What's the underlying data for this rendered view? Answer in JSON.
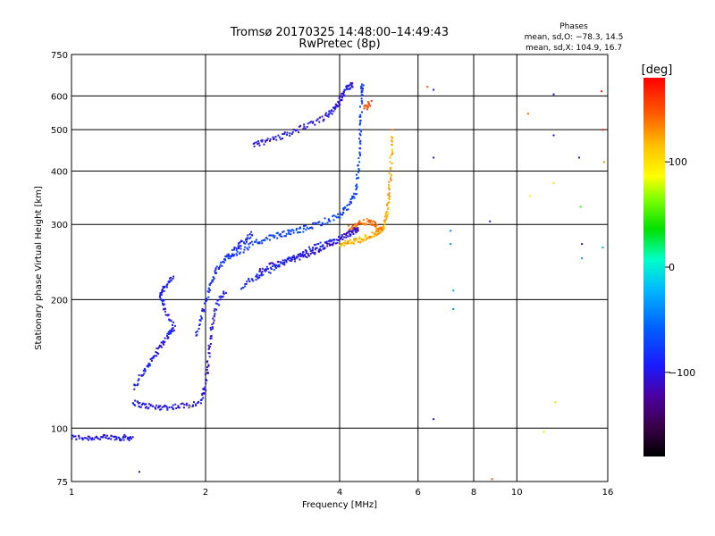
{
  "chart_data": {
    "type": "scatter",
    "title": "Tromsø 20170325 14:48:00–14:49:43",
    "subtitle": "RwPretec (8p)",
    "info": {
      "heading": "Phases",
      "line1": "mean, sd,O: −78.3, 14.5",
      "line2": "mean, sd,X: 104.9, 16.7"
    },
    "xlabel": "Frequency [MHz]",
    "ylabel": "Stationary phase Virtual Height [km]",
    "x_scale": "log",
    "y_scale": "log",
    "xlim": [
      1,
      16
    ],
    "ylim": [
      75,
      750
    ],
    "x_ticks": [
      1,
      2,
      4,
      6,
      8,
      10,
      16
    ],
    "x_tick_labels": [
      "1",
      "2",
      "4",
      "6",
      "8",
      "10",
      "16"
    ],
    "y_ticks": [
      75,
      100,
      200,
      300,
      400,
      500,
      600,
      750
    ],
    "y_tick_labels": [
      "75",
      "100",
      "200",
      "300",
      "400",
      "500",
      "600",
      "750"
    ],
    "grid": true,
    "colorbar": {
      "unit": "[deg]",
      "range": [
        -180,
        180
      ],
      "ticks": [
        100,
        0,
        -100
      ],
      "tick_labels": [
        "100",
        "0",
        "−100"
      ]
    },
    "traces": [
      {
        "name": "",
        "phase": -100,
        "points": [
          [
            1.0,
            95
          ],
          [
            1.08,
            95
          ],
          [
            1.16,
            95
          ],
          [
            1.24,
            95
          ],
          [
            1.31,
            95
          ],
          [
            1.37,
            95
          ]
        ]
      },
      {
        "name": "",
        "phase": -100,
        "points": [
          [
            1.37,
            115
          ],
          [
            1.45,
            113
          ],
          [
            1.55,
            112
          ],
          [
            1.65,
            112
          ],
          [
            1.8,
            113
          ],
          [
            1.95,
            115
          ],
          [
            2.0,
            125
          ],
          [
            2.03,
            145
          ],
          [
            2.06,
            170
          ],
          [
            2.12,
            195
          ],
          [
            2.22,
            210
          ]
        ]
      },
      {
        "name": "",
        "phase": -95,
        "points": [
          [
            1.38,
            125
          ],
          [
            1.45,
            135
          ],
          [
            1.52,
            145
          ],
          [
            1.58,
            155
          ],
          [
            1.65,
            165
          ],
          [
            1.7,
            172
          ],
          [
            1.62,
            190
          ],
          [
            1.58,
            205
          ],
          [
            1.62,
            215
          ],
          [
            1.7,
            225
          ]
        ]
      },
      {
        "name": "",
        "phase": -85,
        "points": [
          [
            1.9,
            165
          ],
          [
            1.98,
            190
          ],
          [
            2.05,
            215
          ],
          [
            2.12,
            235
          ],
          [
            2.22,
            250
          ],
          [
            2.35,
            265
          ],
          [
            2.45,
            275
          ],
          [
            2.55,
            285
          ]
        ]
      },
      {
        "name": "",
        "phase": -105,
        "points": [
          [
            2.6,
            230
          ],
          [
            2.8,
            240
          ],
          [
            3.0,
            245
          ],
          [
            3.2,
            250
          ],
          [
            3.4,
            255
          ],
          [
            3.6,
            262
          ],
          [
            3.8,
            270
          ],
          [
            4.0,
            278
          ],
          [
            4.2,
            285
          ],
          [
            4.3,
            290
          ],
          [
            4.4,
            292
          ]
        ]
      },
      {
        "name": "",
        "phase": -90,
        "points": [
          [
            2.4,
            215
          ],
          [
            2.6,
            225
          ],
          [
            2.8,
            235
          ],
          [
            3.0,
            245
          ],
          [
            3.3,
            258
          ],
          [
            3.6,
            268
          ],
          [
            3.9,
            276
          ]
        ]
      },
      {
        "name": "",
        "phase": -75,
        "points": [
          [
            2.2,
            250
          ],
          [
            2.4,
            260
          ],
          [
            2.6,
            272
          ],
          [
            2.8,
            280
          ],
          [
            3.0,
            285
          ],
          [
            3.2,
            290
          ],
          [
            3.4,
            295
          ],
          [
            3.7,
            305
          ],
          [
            4.0,
            315
          ],
          [
            4.2,
            330
          ],
          [
            4.35,
            360
          ],
          [
            4.42,
            420
          ],
          [
            4.45,
            500
          ],
          [
            4.48,
            600
          ],
          [
            4.5,
            640
          ]
        ]
      },
      {
        "name": "",
        "phase": -100,
        "points": [
          [
            2.55,
            460
          ],
          [
            2.75,
            470
          ],
          [
            3.0,
            485
          ],
          [
            3.3,
            505
          ],
          [
            3.6,
            525
          ],
          [
            3.8,
            545
          ],
          [
            3.95,
            570
          ],
          [
            4.05,
            600
          ],
          [
            4.15,
            625
          ],
          [
            4.3,
            640
          ]
        ]
      },
      {
        "name": "",
        "phase": 120,
        "points": [
          [
            4.0,
            270
          ],
          [
            4.2,
            272
          ],
          [
            4.4,
            275
          ],
          [
            4.6,
            280
          ],
          [
            4.8,
            285
          ],
          [
            4.95,
            290
          ],
          [
            5.05,
            300
          ],
          [
            5.12,
            320
          ],
          [
            5.18,
            360
          ],
          [
            5.22,
            420
          ],
          [
            5.25,
            500
          ]
        ]
      },
      {
        "name": "",
        "phase": 140,
        "points": [
          [
            4.2,
            295
          ],
          [
            4.4,
            300
          ],
          [
            4.6,
            305
          ],
          [
            4.8,
            300
          ],
          [
            5.0,
            290
          ]
        ]
      },
      {
        "name": "",
        "phase": 150,
        "points": [
          [
            4.55,
            560
          ],
          [
            4.7,
            580
          ]
        ]
      }
    ],
    "isolated_points": [
      [
        6.3,
        630,
        150
      ],
      [
        6.5,
        620,
        -110
      ],
      [
        6.5,
        430,
        -110
      ],
      [
        6.5,
        105,
        -110
      ],
      [
        7.1,
        290,
        -40
      ],
      [
        7.1,
        270,
        -40
      ],
      [
        7.2,
        210,
        -30
      ],
      [
        7.2,
        190,
        -40
      ],
      [
        8.7,
        305,
        -110
      ],
      [
        8.8,
        76,
        150
      ],
      [
        10.6,
        545,
        140
      ],
      [
        10.7,
        350,
        90
      ],
      [
        12.1,
        605,
        -110
      ],
      [
        12.1,
        485,
        -110
      ],
      [
        12.1,
        375,
        100
      ],
      [
        12.2,
        115,
        100
      ],
      [
        11.5,
        98,
        100
      ],
      [
        13.8,
        430,
        -110
      ],
      [
        13.9,
        330,
        50
      ],
      [
        14.0,
        270,
        -110
      ],
      [
        14.0,
        250,
        -30
      ],
      [
        15.5,
        615,
        170
      ],
      [
        15.6,
        500,
        170
      ],
      [
        15.7,
        420,
        130
      ],
      [
        15.6,
        265,
        -20
      ],
      [
        1.42,
        79,
        -110
      ],
      [
        1.85,
        112,
        100
      ]
    ]
  }
}
